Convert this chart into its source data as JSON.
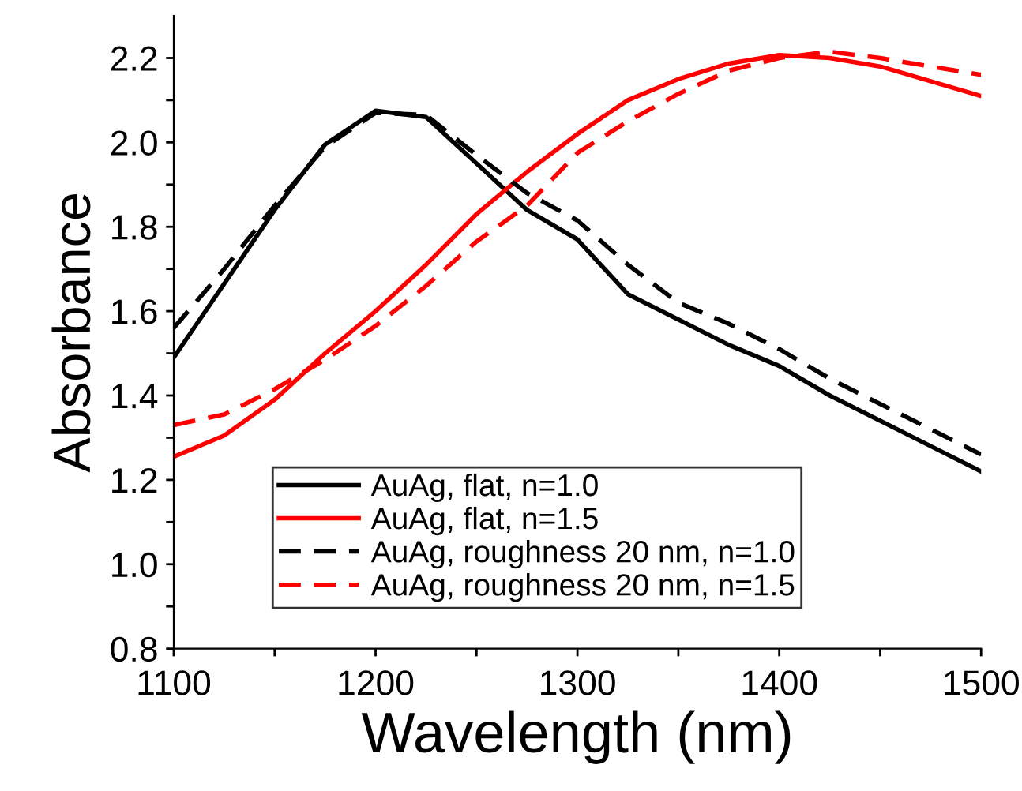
{
  "chart_data": {
    "type": "line",
    "xlabel": "Wavelength (nm)",
    "ylabel": "Absorbance",
    "x": [
      1100,
      1125,
      1150,
      1175,
      1200,
      1225,
      1250,
      1275,
      1300,
      1325,
      1350,
      1375,
      1400,
      1425,
      1450,
      1475,
      1500
    ],
    "series": [
      {
        "name": "AuAg, flat, n=1.0",
        "color": "#000000",
        "line_style": "solid",
        "values": [
          1.49,
          1.665,
          1.84,
          1.995,
          2.075,
          2.06,
          1.95,
          1.84,
          1.77,
          1.64,
          1.58,
          1.52,
          1.47,
          1.4,
          1.34,
          1.28,
          1.22
        ]
      },
      {
        "name": "AuAg, flat, n=1.5",
        "color": "#ff0000",
        "line_style": "solid",
        "values": [
          1.255,
          1.305,
          1.39,
          1.5,
          1.6,
          1.71,
          1.83,
          1.93,
          2.02,
          2.1,
          2.15,
          2.187,
          2.207,
          2.2,
          2.18,
          2.145,
          2.11
        ]
      },
      {
        "name": "AuAg, roughness 20 nm, n=1.0",
        "color": "#000000",
        "line_style": "dashed",
        "values": [
          1.56,
          1.7,
          1.85,
          1.99,
          2.07,
          2.065,
          1.97,
          1.88,
          1.815,
          1.71,
          1.62,
          1.57,
          1.51,
          1.44,
          1.38,
          1.32,
          1.26
        ]
      },
      {
        "name": "AuAg, roughness 20 nm, n=1.5",
        "color": "#ff0000",
        "line_style": "dashed",
        "values": [
          1.33,
          1.355,
          1.415,
          1.485,
          1.565,
          1.66,
          1.765,
          1.85,
          1.975,
          2.05,
          2.115,
          2.17,
          2.2,
          2.215,
          2.2,
          2.18,
          2.16
        ]
      }
    ],
    "xlim": [
      1100,
      1500
    ],
    "ylim": [
      0.8,
      2.3
    ],
    "xticks": [
      1100,
      {
        "value": 1150,
        "label": null
      },
      1200,
      {
        "value": 1250,
        "label": null
      },
      1300,
      {
        "value": 1350,
        "label": null
      },
      1400,
      {
        "value": 1450,
        "label": null
      },
      1500
    ],
    "yticks": [
      {
        "value": 0.8,
        "label": "0.8"
      },
      {
        "value": 0.9,
        "label": null
      },
      {
        "value": 1.0,
        "label": "1.0"
      },
      {
        "value": 1.1,
        "label": null
      },
      {
        "value": 1.2,
        "label": "1.2"
      },
      {
        "value": 1.3,
        "label": null
      },
      {
        "value": 1.4,
        "label": "1.4"
      },
      {
        "value": 1.5,
        "label": null
      },
      {
        "value": 1.6,
        "label": "1.6"
      },
      {
        "value": 1.7,
        "label": null
      },
      {
        "value": 1.8,
        "label": "1.8"
      },
      {
        "value": 1.9,
        "label": null
      },
      {
        "value": 2.0,
        "label": "2.0"
      },
      {
        "value": 2.1,
        "label": null
      },
      {
        "value": 2.2,
        "label": "2.2"
      }
    ],
    "legend": "bottom",
    "grid": false
  }
}
